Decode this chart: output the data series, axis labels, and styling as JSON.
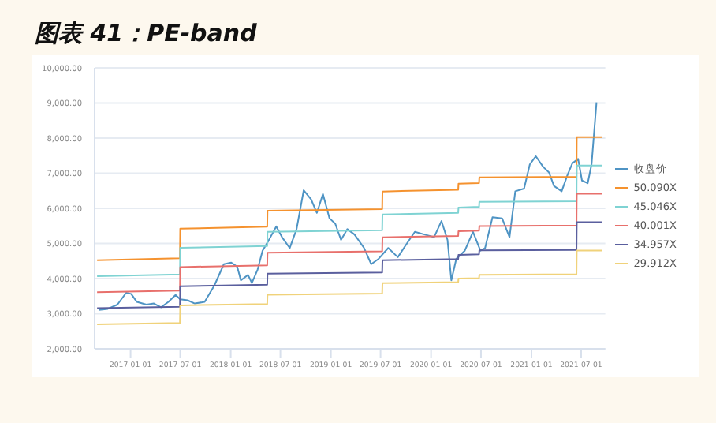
{
  "chart_data": {
    "type": "line",
    "title": "图表 41：PE-band",
    "xlim": [
      "2016-08-23",
      "2021-09-27"
    ],
    "xticks": [
      "2017-01-01",
      "2017-07-01",
      "2018-01-01",
      "2018-07-01",
      "2019-01-01",
      "2019-07-01",
      "2020-01-01",
      "2020-07-01",
      "2021-01-01",
      "2021-07-01"
    ],
    "ylim": [
      2000,
      10000
    ],
    "yticks": [
      {
        "value": 2000,
        "label": "2,000.00"
      },
      {
        "value": 3000,
        "label": "3,000.00"
      },
      {
        "value": 4000,
        "label": "4,000.00"
      },
      {
        "value": 5000,
        "label": "5,000.00"
      },
      {
        "value": 6000,
        "label": "6,000.00"
      },
      {
        "value": 7000,
        "label": "7,000.00"
      },
      {
        "value": 8000,
        "label": "8,000.00"
      },
      {
        "value": 9000,
        "label": "9,000.00"
      },
      {
        "value": 10000,
        "label": "10,000.00"
      }
    ],
    "grid": "y",
    "legend": "right",
    "marker": "none",
    "line_style": "solid",
    "series": [
      {
        "name": "收盘价",
        "color": "#4f94c4",
        "x": [
          "2016-09-08",
          "2016-10-10",
          "2016-11-14",
          "2016-12-16",
          "2017-01-03",
          "2017-01-24",
          "2017-02-28",
          "2017-03-27",
          "2017-04-22",
          "2017-05-19",
          "2017-06-14",
          "2017-07-01",
          "2017-07-28",
          "2017-08-23",
          "2017-09-28",
          "2017-11-02",
          "2017-12-07",
          "2018-01-03",
          "2018-01-25",
          "2018-02-07",
          "2018-03-05",
          "2018-03-19",
          "2018-04-09",
          "2018-04-27",
          "2018-05-18",
          "2018-06-16",
          "2018-07-07",
          "2018-08-04",
          "2018-08-29",
          "2018-09-24",
          "2018-10-21",
          "2018-11-11",
          "2018-12-03",
          "2018-12-27",
          "2019-01-17",
          "2019-02-07",
          "2019-03-02",
          "2019-03-28",
          "2019-05-02",
          "2019-05-28",
          "2019-06-24",
          "2019-07-29",
          "2019-09-02",
          "2019-10-07",
          "2019-11-03",
          "2019-12-08",
          "2020-01-12",
          "2020-02-08",
          "2020-03-01",
          "2020-03-15",
          "2020-04-02",
          "2020-05-03",
          "2020-06-02",
          "2020-06-29",
          "2020-07-16",
          "2020-08-12",
          "2020-09-16",
          "2020-10-13",
          "2020-11-03",
          "2020-12-05",
          "2020-12-26",
          "2021-01-17",
          "2021-02-13",
          "2021-03-06",
          "2021-03-24",
          "2021-04-21",
          "2021-05-12",
          "2021-05-30",
          "2021-06-20",
          "2021-07-04",
          "2021-07-25",
          "2021-08-08",
          "2021-08-26"
        ],
        "values": [
          3106,
          3137,
          3259,
          3595,
          3565,
          3336,
          3259,
          3290,
          3182,
          3336,
          3534,
          3412,
          3382,
          3290,
          3336,
          3798,
          4410,
          4456,
          4333,
          3949,
          4103,
          3872,
          4256,
          4794,
          5070,
          5485,
          5178,
          4870,
          5408,
          6516,
          6255,
          5870,
          6408,
          5716,
          5562,
          5101,
          5408,
          5255,
          4870,
          4410,
          4563,
          4870,
          4609,
          5024,
          5331,
          5255,
          5178,
          5639,
          5101,
          3949,
          4563,
          4794,
          5331,
          4794,
          4870,
          5746,
          5716,
          5178,
          6485,
          6562,
          7253,
          7484,
          7177,
          7023,
          6639,
          6485,
          6946,
          7284,
          7407,
          6792,
          6716,
          7253,
          9018
        ]
      },
      {
        "name": "50.090X",
        "color": "#f5922e",
        "x": [
          "2016-09-01",
          "2017-06-30",
          "2017-07-01",
          "2018-05-14",
          "2018-05-15",
          "2019-07-07",
          "2019-07-08",
          "2020-04-09",
          "2020-04-10",
          "2020-06-24",
          "2020-06-25",
          "2021-06-14",
          "2021-06-15",
          "2021-09-15"
        ],
        "values": [
          4520,
          4580,
          5420,
          5480,
          5930,
          5980,
          6480,
          6530,
          6700,
          6720,
          6880,
          6900,
          8030,
          8030
        ]
      },
      {
        "name": "45.046X",
        "color": "#7fd3d3",
        "x": [
          "2016-09-01",
          "2017-06-30",
          "2017-07-01",
          "2018-05-14",
          "2018-05-15",
          "2019-07-07",
          "2019-07-08",
          "2020-04-09",
          "2020-04-10",
          "2020-06-24",
          "2020-06-25",
          "2021-06-14",
          "2021-06-15",
          "2021-09-15"
        ],
        "values": [
          4065,
          4119,
          4874,
          4928,
          5333,
          5378,
          5828,
          5872,
          6025,
          6043,
          6187,
          6205,
          7221,
          7221
        ]
      },
      {
        "name": "40.001X",
        "color": "#e8706c",
        "x": [
          "2016-09-01",
          "2017-06-30",
          "2017-07-01",
          "2018-05-14",
          "2018-05-15",
          "2019-07-07",
          "2019-07-08",
          "2020-04-09",
          "2020-04-10",
          "2020-06-24",
          "2020-06-25",
          "2021-06-14",
          "2021-06-15",
          "2021-09-15"
        ],
        "values": [
          3610,
          3658,
          4328,
          4376,
          4736,
          4775,
          5175,
          5215,
          5350,
          5366,
          5494,
          5510,
          6413,
          6413
        ]
      },
      {
        "name": "34.957X",
        "color": "#5a5f9e",
        "x": [
          "2016-09-01",
          "2017-06-30",
          "2017-07-01",
          "2018-05-14",
          "2018-05-15",
          "2019-07-07",
          "2019-07-08",
          "2020-04-09",
          "2020-04-10",
          "2020-06-24",
          "2020-06-25",
          "2021-06-14",
          "2021-06-15",
          "2021-09-15"
        ],
        "values": [
          3155,
          3196,
          3783,
          3825,
          4139,
          4173,
          4522,
          4557,
          4676,
          4690,
          4801,
          4816,
          5604,
          5604
        ]
      },
      {
        "name": "29.912X",
        "color": "#f0d27a",
        "x": [
          "2016-09-01",
          "2017-06-30",
          "2017-07-01",
          "2018-05-14",
          "2018-05-15",
          "2019-07-07",
          "2019-07-08",
          "2020-04-09",
          "2020-04-10",
          "2020-06-24",
          "2020-06-25",
          "2021-06-14",
          "2021-06-15",
          "2021-09-15"
        ],
        "values": [
          2699,
          2735,
          3237,
          3273,
          3541,
          3571,
          3870,
          3900,
          4001,
          4011,
          4109,
          4121,
          4796,
          4796
        ]
      }
    ]
  }
}
